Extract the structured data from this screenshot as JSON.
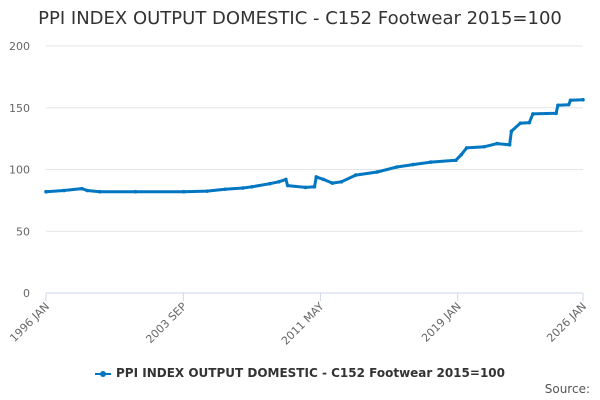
{
  "chart_data": {
    "type": "line",
    "title": "PPI INDEX OUTPUT DOMESTIC - C152 Footwear 2015=100",
    "xlabel": "",
    "ylabel": "",
    "ylim": [
      0,
      200
    ],
    "yticks": [
      0,
      50,
      100,
      150,
      200
    ],
    "xlim": [
      1996.0,
      2026.0
    ],
    "xticks": [
      {
        "v": 1996.0,
        "label": "1996 JAN"
      },
      {
        "v": 2003.67,
        "label": "2003 SEP"
      },
      {
        "v": 2011.33,
        "label": "2011 MAY"
      },
      {
        "v": 2019.0,
        "label": "2019 JAN"
      },
      {
        "v": 2026.0,
        "label": "2026 JAN"
      }
    ],
    "grid": true,
    "legend": "bottom",
    "series": [
      {
        "name": "PPI INDEX OUTPUT DOMESTIC - C152 Footwear 2015=100",
        "color": "#0077c0",
        "x": [
          1996.0,
          1997.0,
          1998.0,
          1998.3,
          1999.0,
          2001.0,
          2003.7,
          2005.0,
          2006.0,
          2007.0,
          2007.5,
          2008.5,
          2009.0,
          2009.4,
          2009.5,
          2010.5,
          2011.0,
          2011.1,
          2011.5,
          2012.0,
          2012.5,
          2013.3,
          2014.5,
          2015.6,
          2016.5,
          2017.5,
          2018.9,
          2019.2,
          2019.5,
          2020.5,
          2021.2,
          2021.9,
          2022.0,
          2022.5,
          2023.0,
          2023.2,
          2024.5,
          2024.6,
          2025.2,
          2025.3,
          2026.0
        ],
        "y": [
          82,
          83,
          84.5,
          83,
          82,
          82,
          82,
          82.5,
          84,
          85,
          86,
          88.5,
          90,
          92,
          87,
          85.5,
          86,
          94,
          92,
          89,
          90,
          95.5,
          98,
          102,
          104,
          106,
          107.5,
          112,
          117.5,
          118.5,
          121,
          120,
          131,
          137.5,
          138,
          145,
          145.5,
          152,
          152.5,
          156,
          156.5
        ]
      }
    ]
  },
  "source_label": "Source:"
}
